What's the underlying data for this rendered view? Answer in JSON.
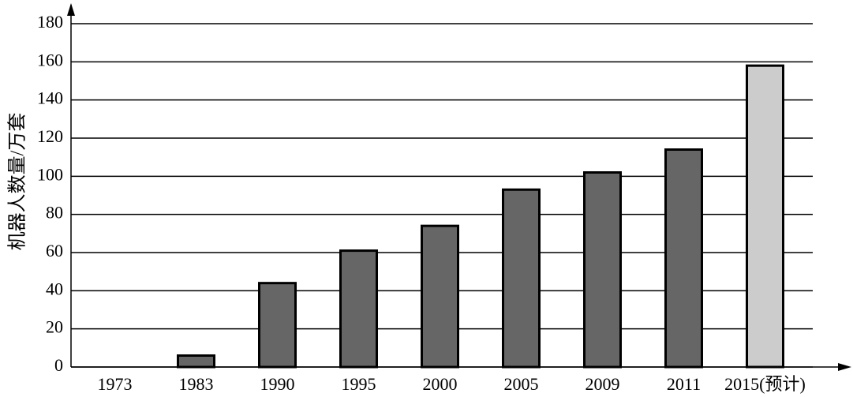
{
  "chart_data": {
    "type": "bar",
    "ylabel": "机器人数量/万套",
    "categories": [
      "1973",
      "1983",
      "1990",
      "1995",
      "2000",
      "2005",
      "2009",
      "2011",
      "2015(预计)"
    ],
    "values": [
      0,
      6,
      44,
      61,
      74,
      93,
      102,
      114,
      158
    ],
    "colors": [
      "#666666",
      "#666666",
      "#666666",
      "#666666",
      "#666666",
      "#666666",
      "#666666",
      "#666666",
      "#cccccc"
    ],
    "ylim": [
      0,
      180
    ],
    "yticks": [
      0,
      20,
      40,
      60,
      80,
      100,
      120,
      140,
      160,
      180
    ],
    "grid": true
  }
}
